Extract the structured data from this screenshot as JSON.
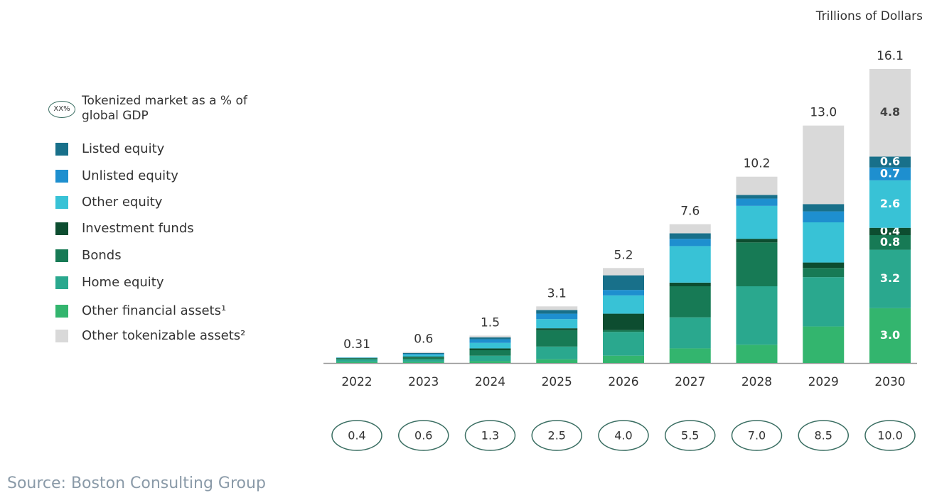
{
  "chart_data": {
    "type": "stacked_bar",
    "unit_label": "Trillions of Dollars",
    "source": "Source: Boston Consulting Group",
    "categories": [
      "2022",
      "2023",
      "2024",
      "2025",
      "2026",
      "2027",
      "2028",
      "2029",
      "2030"
    ],
    "series": [
      {
        "name": "Listed equity",
        "color": "#18708a",
        "values": [
          0.005,
          0.05,
          0.1,
          0.2,
          0.8,
          0.3,
          0.2,
          0.4,
          0.6
        ],
        "value_labels": [
          null,
          null,
          null,
          null,
          null,
          null,
          null,
          null,
          "0.6"
        ]
      },
      {
        "name": "Unlisted equity",
        "color": "#1e8fcf",
        "values": [
          0.01,
          0.05,
          0.2,
          0.3,
          0.3,
          0.4,
          0.4,
          0.6,
          0.7
        ],
        "value_labels": [
          null,
          null,
          null,
          null,
          null,
          null,
          null,
          null,
          "0.7"
        ]
      },
      {
        "name": "Other equity",
        "color": "#38c2d6",
        "values": [
          0.02,
          0.1,
          0.3,
          0.5,
          1.0,
          2.0,
          1.8,
          2.2,
          2.6
        ],
        "value_labels": [
          null,
          null,
          null,
          null,
          null,
          null,
          null,
          null,
          "2.6"
        ]
      },
      {
        "name": "Investment funds",
        "color": "#0d4d30",
        "values": [
          0.02,
          0.05,
          0.1,
          0.1,
          0.9,
          0.2,
          0.2,
          0.3,
          0.4
        ],
        "value_labels": [
          null,
          null,
          null,
          null,
          null,
          null,
          null,
          null,
          "0.4"
        ]
      },
      {
        "name": "Bonds",
        "color": "#177a55",
        "values": [
          0.05,
          0.1,
          0.3,
          0.9,
          0.1,
          1.7,
          2.4,
          0.5,
          0.8
        ],
        "value_labels": [
          null,
          null,
          null,
          null,
          null,
          null,
          null,
          null,
          "0.8"
        ]
      },
      {
        "name": "Home equity",
        "color": "#2aa88e",
        "values": [
          0.15,
          0.15,
          0.3,
          0.7,
          1.3,
          1.7,
          3.2,
          2.7,
          3.2
        ],
        "value_labels": [
          null,
          null,
          null,
          null,
          null,
          null,
          null,
          null,
          "3.2"
        ]
      },
      {
        "name": "Other financial assets¹",
        "color": "#33b56e",
        "values": [
          0.05,
          0.05,
          0.1,
          0.2,
          0.4,
          0.8,
          1.0,
          2.0,
          3.0
        ],
        "value_labels": [
          null,
          null,
          null,
          null,
          null,
          null,
          null,
          null,
          "3.0"
        ]
      },
      {
        "name": "Other tokenizable assets²",
        "color": "#d9d9d9",
        "values": [
          0.005,
          0.05,
          0.1,
          0.2,
          0.4,
          0.5,
          1.0,
          4.3,
          4.8
        ],
        "value_labels": [
          null,
          null,
          null,
          null,
          null,
          null,
          null,
          null,
          "4.8"
        ]
      }
    ],
    "totals": {
      "values": [
        0.31,
        0.6,
        1.5,
        3.1,
        5.2,
        7.6,
        10.2,
        13.0,
        16.1
      ],
      "value_labels": [
        "0.31",
        "0.6",
        "1.5",
        "3.1",
        "5.2",
        "7.6",
        "10.2",
        "13.0",
        "16.1"
      ]
    },
    "gdp_share": {
      "label": "Tokenized market as a % of global GDP",
      "icon_label": "XX%",
      "values": [
        0.4,
        0.6,
        1.3,
        2.5,
        4.0,
        5.5,
        7.0,
        8.5,
        10.0
      ],
      "value_labels": [
        "0.4",
        "0.6",
        "1.3",
        "2.5",
        "4.0",
        "5.5",
        "7.0",
        "8.5",
        "10.0"
      ]
    }
  }
}
